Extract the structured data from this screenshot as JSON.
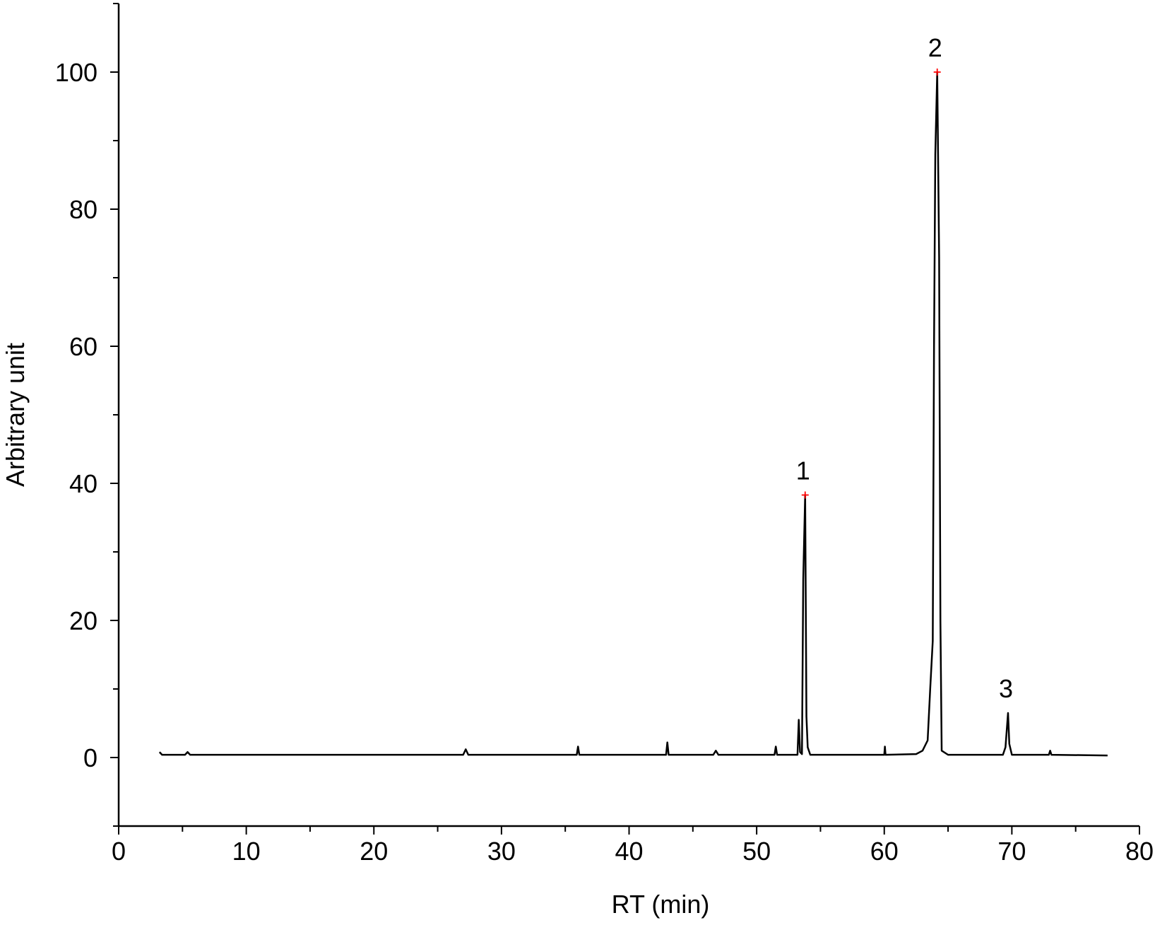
{
  "chart_data": {
    "type": "line",
    "x_label": "RT (min)",
    "y_label": "Arbitrary unit",
    "xlim": [
      0,
      80
    ],
    "ylim": [
      -10,
      110
    ],
    "xticks": [
      0,
      10,
      20,
      30,
      40,
      50,
      60,
      70,
      80
    ],
    "xminorticks": [
      5,
      15,
      25,
      35,
      45,
      55,
      65,
      75
    ],
    "yticks": [
      0,
      20,
      40,
      60,
      80,
      100
    ],
    "yminorticks": [
      -10,
      10,
      30,
      50,
      70,
      90,
      110
    ],
    "series": [
      {
        "color": "#000000",
        "x": [
          3.2,
          3.4,
          5.2,
          5.4,
          5.6,
          27.0,
          27.2,
          27.4,
          35.9,
          36.0,
          36.1,
          42.9,
          43.0,
          43.1,
          46.6,
          46.8,
          47.0,
          51.4,
          51.5,
          51.6,
          53.2,
          53.3,
          53.4,
          53.55,
          53.65,
          53.8,
          53.9,
          54.0,
          54.2,
          60.0,
          60.05,
          60.1,
          62.5,
          63.0,
          63.4,
          63.6,
          63.8,
          63.9,
          64.0,
          64.15,
          64.3,
          64.4,
          64.5,
          65.0,
          69.3,
          69.5,
          69.7,
          69.8,
          70.0,
          72.9,
          73.0,
          73.1,
          77.5
        ],
        "values": [
          0.8,
          0.4,
          0.4,
          0.8,
          0.4,
          0.4,
          1.2,
          0.4,
          0.4,
          1.6,
          0.4,
          0.4,
          2.2,
          0.4,
          0.4,
          1.0,
          0.4,
          0.4,
          1.6,
          0.4,
          0.4,
          5.5,
          0.8,
          0.5,
          26,
          38.3,
          6,
          1.5,
          0.4,
          0.4,
          1.6,
          0.4,
          0.5,
          1.0,
          2.5,
          10,
          17,
          60,
          88,
          100,
          73,
          20,
          1.0,
          0.4,
          0.4,
          1.5,
          6.5,
          2,
          0.4,
          0.4,
          1.0,
          0.4,
          0.3
        ]
      }
    ],
    "annotations": [
      {
        "text": "1",
        "x": 53.8,
        "y": 38.3,
        "marker": true
      },
      {
        "text": "2",
        "x": 64.15,
        "y": 100,
        "marker": true
      },
      {
        "text": "3",
        "x": 69.7,
        "y": 6.5,
        "marker": false
      }
    ],
    "marker_color": "#ff0000"
  }
}
